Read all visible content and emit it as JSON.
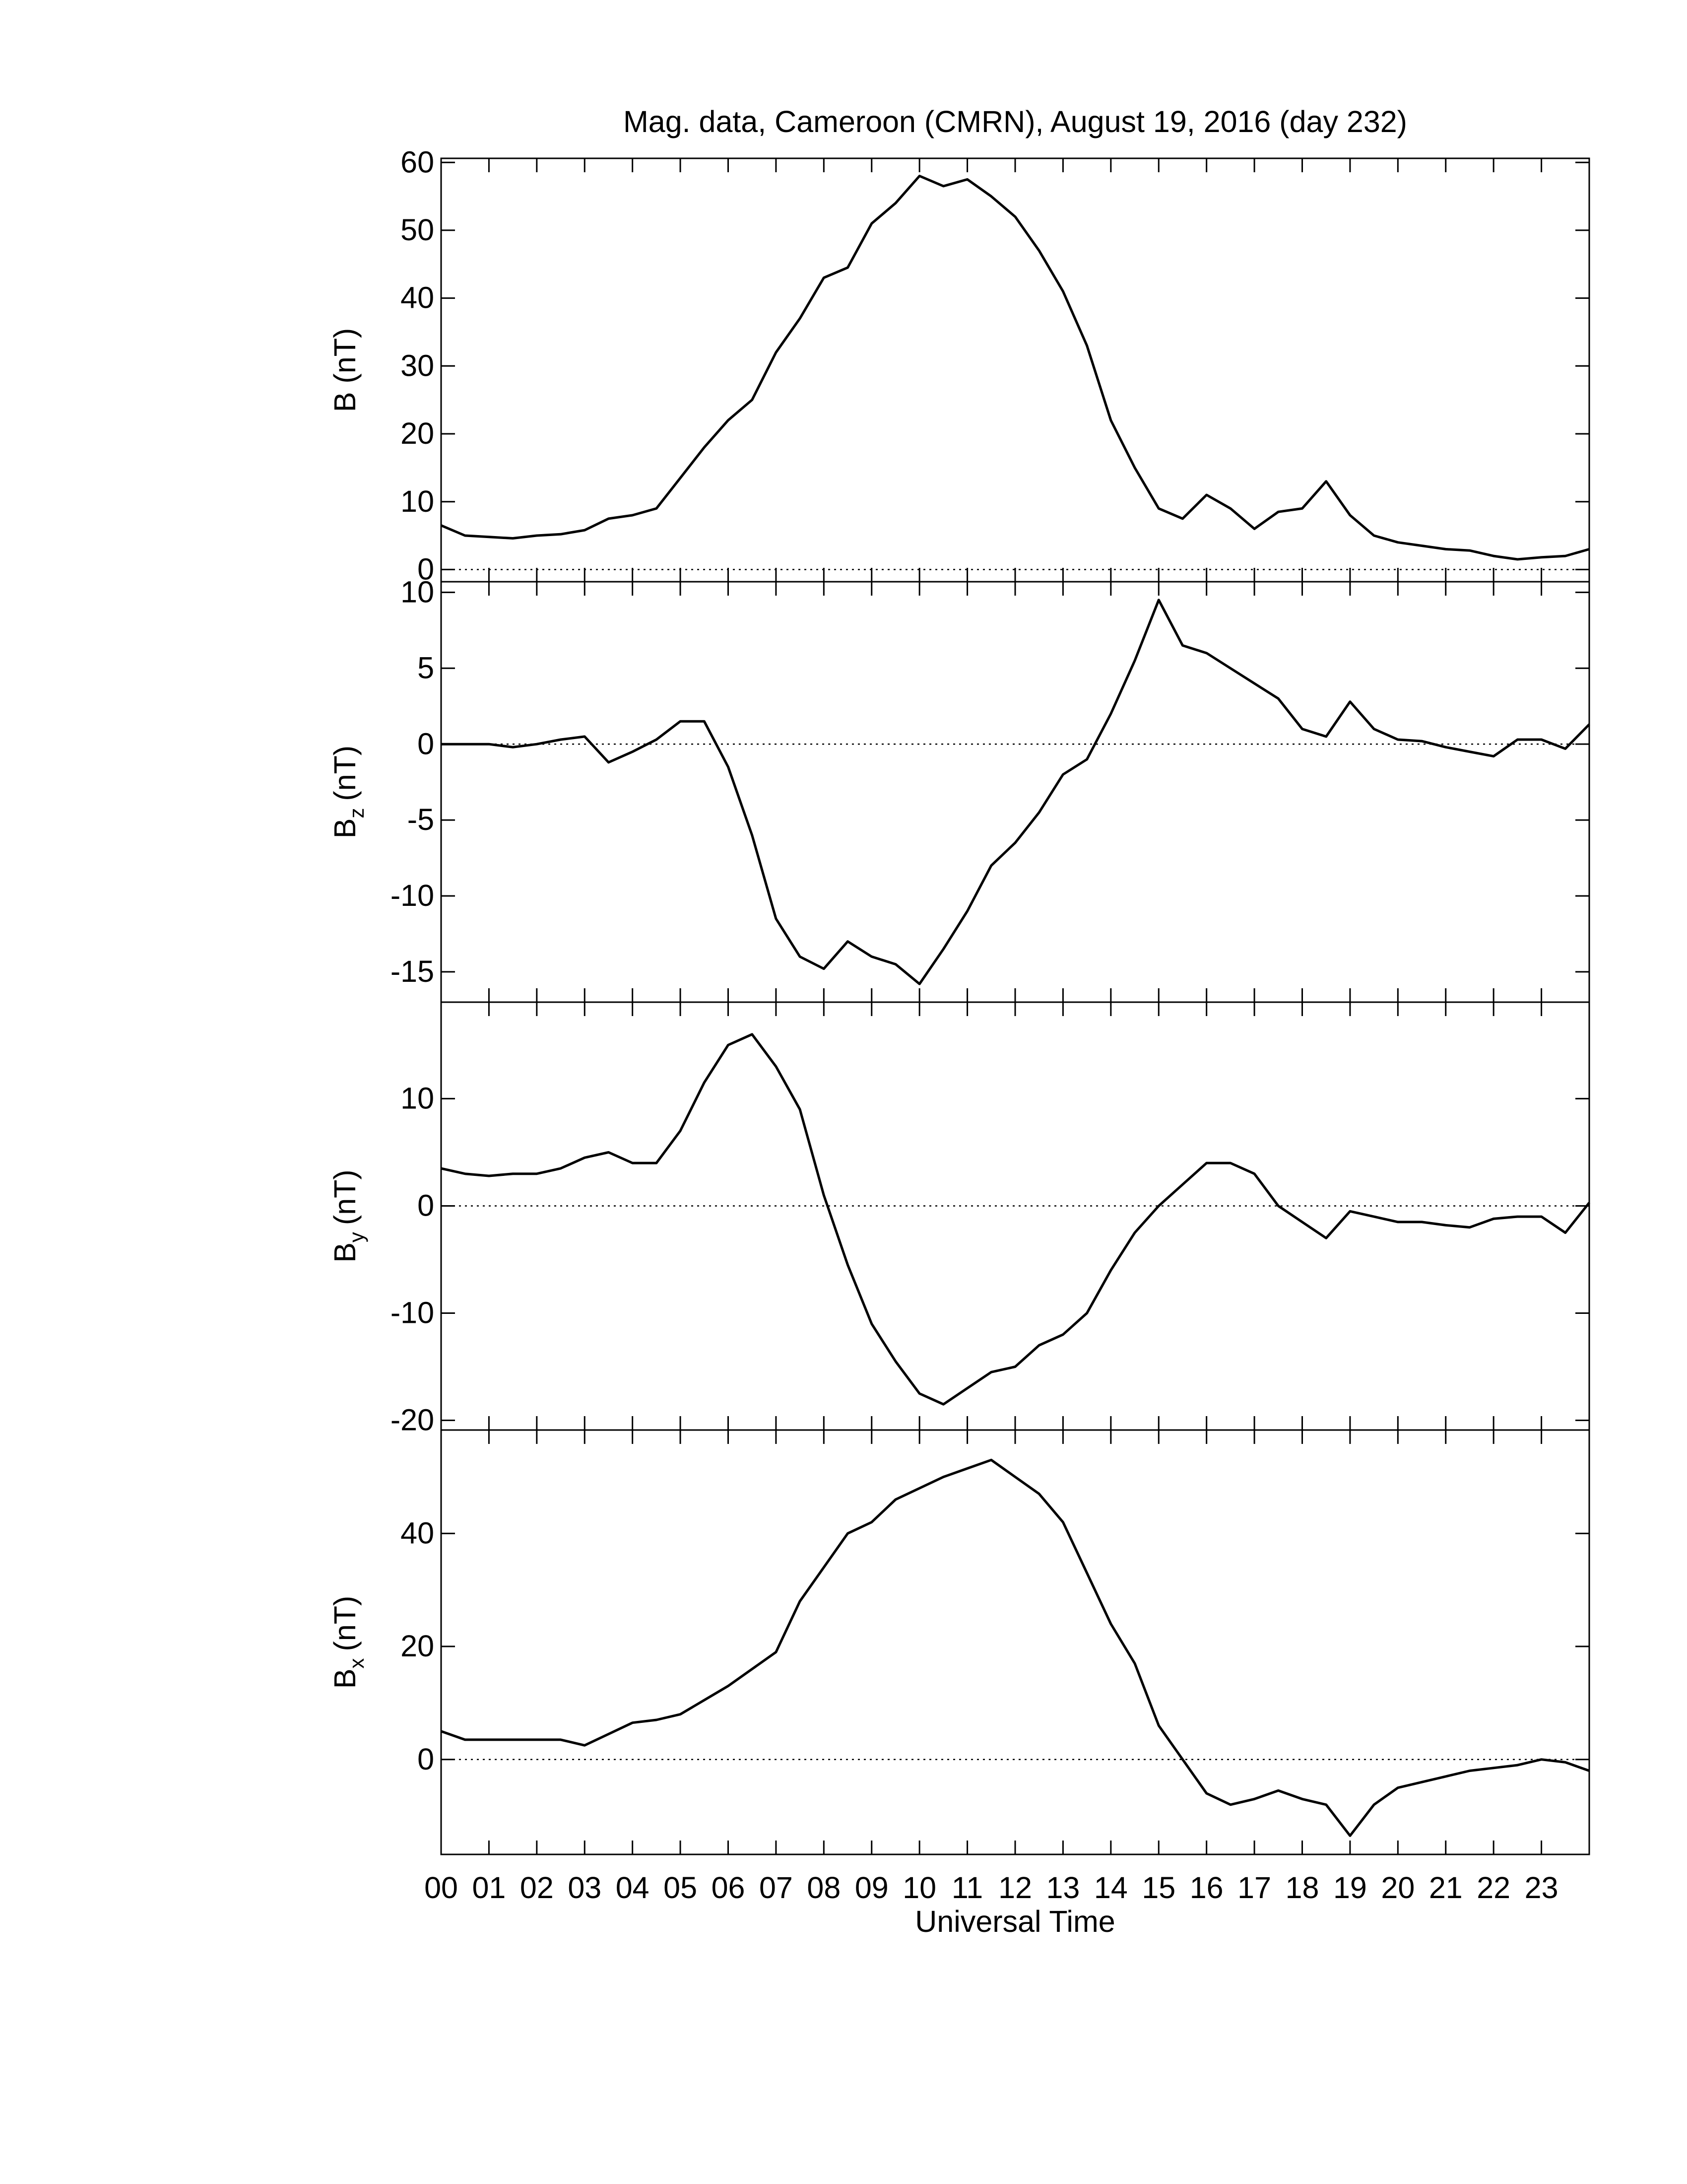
{
  "chart_data": [
    {
      "type": "line",
      "title": "Mag. data, Cameroon (CMRN), August 19, 2016 (day 232)",
      "ylabel": "B (nT)",
      "x": [
        0,
        0.5,
        1,
        1.5,
        2,
        2.5,
        3,
        3.5,
        4,
        4.5,
        5,
        5.5,
        6,
        6.5,
        7,
        7.5,
        8,
        8.5,
        9,
        9.5,
        10,
        10.5,
        11,
        11.5,
        12,
        12.5,
        13,
        13.5,
        14,
        14.5,
        15,
        15.5,
        16,
        16.5,
        17,
        17.5,
        18,
        18.5,
        19,
        19.5,
        20,
        20.5,
        21,
        21.5,
        22,
        22.5,
        23,
        23.5,
        24
      ],
      "values": [
        6.5,
        5,
        4.8,
        4.6,
        5,
        5.2,
        5.8,
        7.5,
        8,
        9,
        13.5,
        18,
        22,
        25,
        32,
        37,
        43,
        44.5,
        51,
        54,
        58,
        56.5,
        57.5,
        55,
        52,
        47,
        41,
        33,
        22,
        15,
        9,
        7.5,
        11,
        9,
        6,
        8.5,
        9,
        13,
        8,
        5,
        4,
        3.5,
        3,
        2.8,
        2,
        1.5,
        1.8,
        2,
        3
      ],
      "color": "#000000",
      "xlim": [
        0,
        24
      ],
      "ylim": [
        -1.8,
        60.6
      ],
      "yticks": [
        0,
        10,
        20,
        30,
        40,
        50,
        60
      ],
      "zero_line": true
    },
    {
      "type": "line",
      "ylabel": "B",
      "ylabel_sub": "z",
      "ylabel_unit": "(nT)",
      "x": [
        0,
        0.5,
        1,
        1.5,
        2,
        2.5,
        3,
        3.5,
        4,
        4.5,
        5,
        5.5,
        6,
        6.5,
        7,
        7.5,
        8,
        8.5,
        9,
        9.5,
        10,
        10.5,
        11,
        11.5,
        12,
        12.5,
        13,
        13.5,
        14,
        14.5,
        15,
        15.5,
        16,
        16.5,
        17,
        17.5,
        18,
        18.5,
        19,
        19.5,
        20,
        20.5,
        21,
        21.5,
        22,
        22.5,
        23,
        23.5,
        24
      ],
      "values": [
        0,
        0,
        0,
        -0.2,
        0,
        0.3,
        0.5,
        -1.2,
        -0.5,
        0.3,
        1.5,
        1.5,
        -1.5,
        -6,
        -11.5,
        -14,
        -14.8,
        -13,
        -14,
        -14.5,
        -15.8,
        -13.5,
        -11,
        -8,
        -6.5,
        -4.5,
        -2,
        -1,
        2,
        5.5,
        9.5,
        6.5,
        6,
        5,
        4,
        3,
        1,
        0.5,
        2.8,
        1,
        0.3,
        0.2,
        -0.2,
        -0.5,
        -0.8,
        0.3,
        0.3,
        -0.3,
        1.3
      ],
      "color": "#000000",
      "xlim": [
        0,
        24
      ],
      "ylim": [
        -17,
        10.7
      ],
      "yticks": [
        -15,
        -10,
        -5,
        0,
        5,
        10
      ],
      "zero_line": true
    },
    {
      "type": "line",
      "ylabel": "B",
      "ylabel_sub": "y",
      "ylabel_unit": "(nT)",
      "x": [
        0,
        0.5,
        1,
        1.5,
        2,
        2.5,
        3,
        3.5,
        4,
        4.5,
        5,
        5.5,
        6,
        6.5,
        7,
        7.5,
        8,
        8.5,
        9,
        9.5,
        10,
        10.5,
        11,
        11.5,
        12,
        12.5,
        13,
        13.5,
        14,
        14.5,
        15,
        15.5,
        16,
        16.5,
        17,
        17.5,
        18,
        18.5,
        19,
        19.5,
        20,
        20.5,
        21,
        21.5,
        22,
        22.5,
        23,
        23.5,
        24
      ],
      "values": [
        3.5,
        3,
        2.8,
        3,
        3,
        3.5,
        4.5,
        5,
        4,
        4,
        7,
        11.5,
        15,
        16,
        13,
        9,
        1,
        -5.5,
        -11,
        -14.5,
        -17.5,
        -18.5,
        -17,
        -15.5,
        -15,
        -13,
        -12,
        -10,
        -6,
        -2.5,
        0,
        2,
        4,
        4,
        3,
        0,
        -1.5,
        -3,
        -0.5,
        -1,
        -1.5,
        -1.5,
        -1.8,
        -2,
        -1.2,
        -1,
        -1,
        -2.5,
        0.3
      ],
      "color": "#000000",
      "xlim": [
        0,
        24
      ],
      "ylim": [
        -20.9,
        19
      ],
      "yticks": [
        -20,
        -10,
        0,
        10
      ],
      "zero_line": true
    },
    {
      "type": "line",
      "ylabel": "B",
      "ylabel_sub": "x",
      "ylabel_unit": "(nT)",
      "xlabel": "Universal Time",
      "x": [
        0,
        0.5,
        1,
        1.5,
        2,
        2.5,
        3,
        3.5,
        4,
        4.5,
        5,
        5.5,
        6,
        6.5,
        7,
        7.5,
        8,
        8.5,
        9,
        9.5,
        10,
        10.5,
        11,
        11.5,
        12,
        12.5,
        13,
        13.5,
        14,
        14.5,
        15,
        15.5,
        16,
        16.5,
        17,
        17.5,
        18,
        18.5,
        19,
        19.5,
        20,
        20.5,
        21,
        21.5,
        22,
        22.5,
        23,
        23.5,
        24
      ],
      "values": [
        5,
        3.5,
        3.5,
        3.5,
        3.5,
        3.5,
        2.5,
        4.5,
        6.5,
        7,
        8,
        10.5,
        13,
        16,
        19,
        28,
        34,
        40,
        42,
        46,
        48,
        50,
        51.5,
        53,
        50,
        47,
        42,
        33,
        24,
        17,
        6,
        0,
        -6,
        -8,
        -7,
        -5.5,
        -7,
        -8,
        -13.5,
        -8,
        -5,
        -4,
        -3,
        -2,
        -1.5,
        -1,
        0,
        -0.5,
        -2
      ],
      "color": "#000000",
      "xlim": [
        0,
        24
      ],
      "ylim": [
        -16.8,
        58.3
      ],
      "yticks": [
        0,
        20,
        40
      ],
      "zero_line": true,
      "xticks": [
        {
          "value": 0,
          "label": "00"
        },
        {
          "value": 1,
          "label": "01"
        },
        {
          "value": 2,
          "label": "02"
        },
        {
          "value": 3,
          "label": "03"
        },
        {
          "value": 4,
          "label": "04"
        },
        {
          "value": 5,
          "label": "05"
        },
        {
          "value": 6,
          "label": "06"
        },
        {
          "value": 7,
          "label": "07"
        },
        {
          "value": 8,
          "label": "08"
        },
        {
          "value": 9,
          "label": "09"
        },
        10,
        11,
        12,
        13,
        14,
        15,
        16,
        17,
        18,
        19,
        20,
        21,
        22,
        23
      ]
    }
  ]
}
